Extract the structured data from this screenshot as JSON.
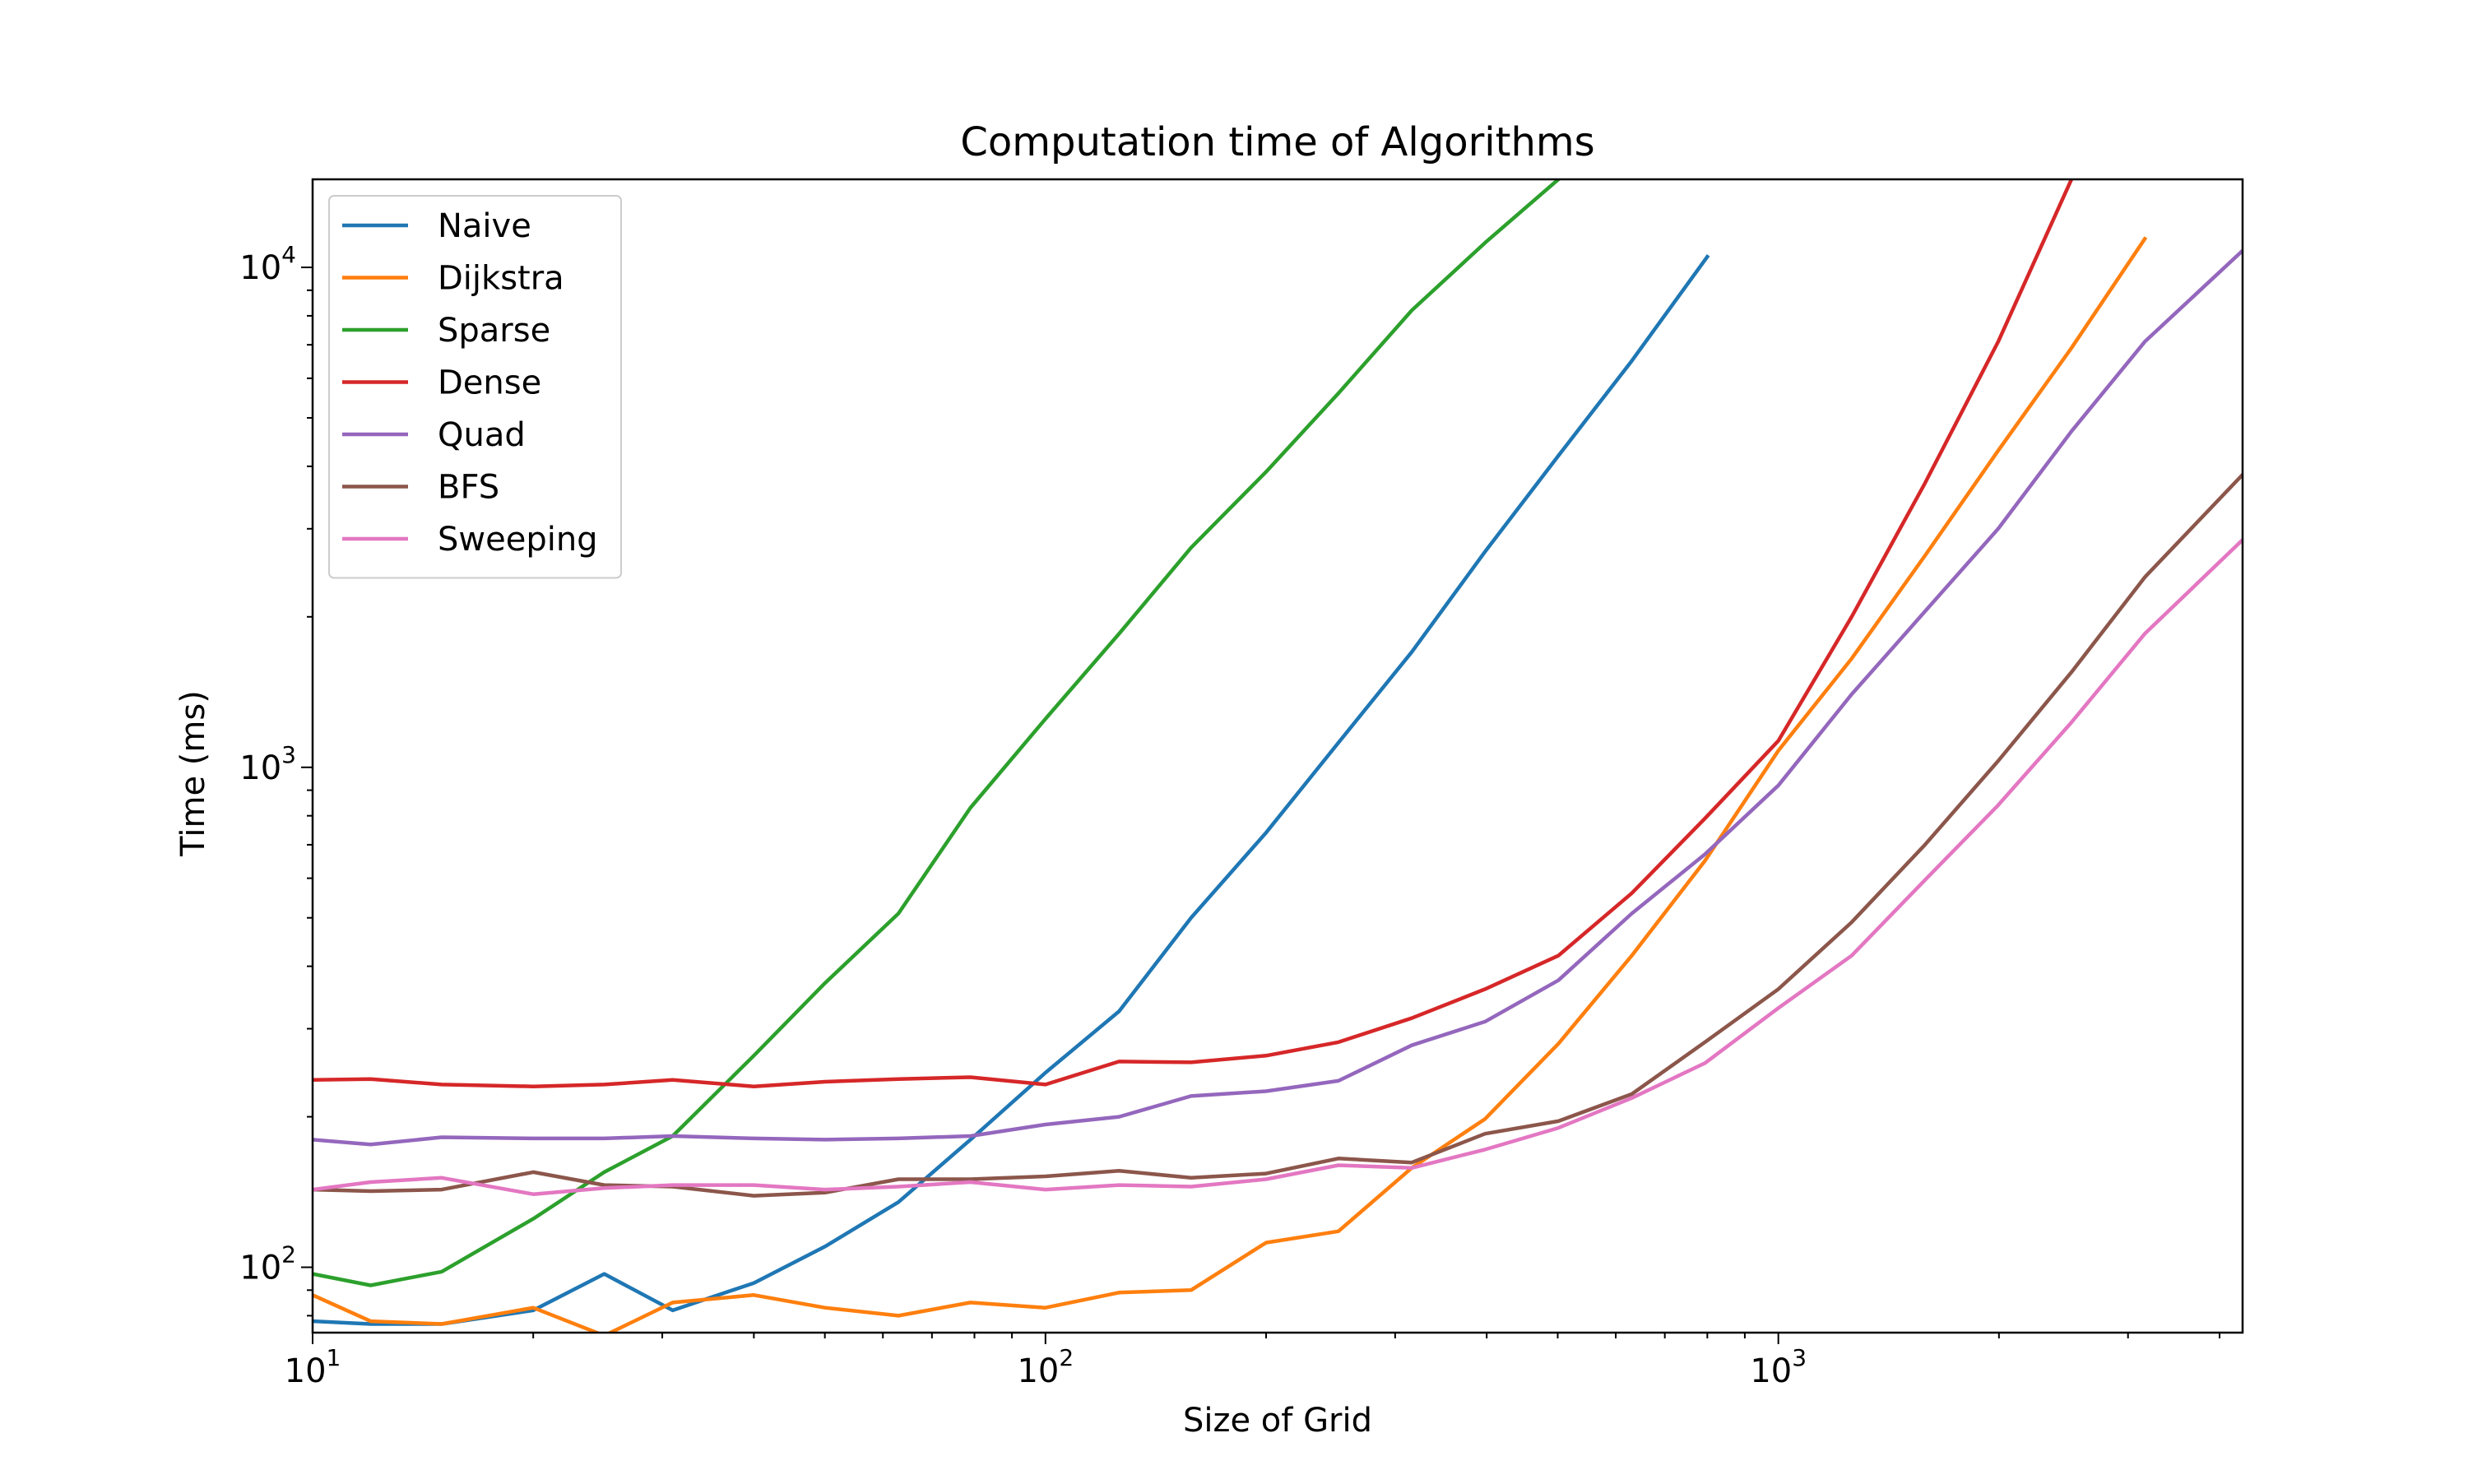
{
  "chart_data": {
    "type": "line",
    "title": "Computation time of Algorithms",
    "xlabel": "Size of Grid",
    "ylabel": "Time (ms)",
    "xscale": "log",
    "yscale": "log",
    "xlim": [
      10,
      4300
    ],
    "ylim": [
      74,
      15000
    ],
    "grid": false,
    "legend_position": "upper-left",
    "x_ticks": [
      {
        "value": 10,
        "base": "10",
        "exp": "1"
      },
      {
        "value": 100,
        "base": "10",
        "exp": "2"
      },
      {
        "value": 1000,
        "base": "10",
        "exp": "3"
      }
    ],
    "y_ticks": [
      {
        "value": 100,
        "base": "10",
        "exp": "2"
      },
      {
        "value": 1000,
        "base": "10",
        "exp": "3"
      },
      {
        "value": 10000,
        "base": "10",
        "exp": "4"
      }
    ],
    "series": [
      {
        "name": "Naive",
        "color": "#1f77b4",
        "x": [
          10,
          12,
          15,
          20,
          25,
          31,
          40,
          50,
          63,
          79,
          100,
          126,
          158,
          200,
          251,
          316,
          398,
          501,
          631,
          800
        ],
        "y": [
          78,
          77,
          77,
          82,
          97,
          82,
          93,
          110,
          135,
          180,
          245,
          325,
          500,
          740,
          1120,
          1700,
          2700,
          4200,
          6500,
          10500
        ]
      },
      {
        "name": "Dijkstra",
        "color": "#ff7f0e",
        "x": [
          10,
          12,
          15,
          20,
          25,
          31,
          40,
          50,
          63,
          79,
          100,
          126,
          158,
          200,
          251,
          316,
          398,
          501,
          631,
          794,
          1000,
          1259,
          1585,
          1995,
          2512,
          3162
        ],
        "y": [
          88,
          78,
          77,
          83,
          73,
          85,
          88,
          83,
          80,
          85,
          83,
          89,
          90,
          112,
          118,
          158,
          198,
          280,
          420,
          650,
          1080,
          1650,
          2650,
          4300,
          6900,
          11400
        ]
      },
      {
        "name": "Sparse",
        "color": "#2ca02c",
        "x": [
          10,
          12,
          15,
          20,
          25,
          31,
          40,
          50,
          63,
          79,
          100,
          126,
          158,
          200,
          251,
          316,
          398,
          501
        ],
        "y": [
          97,
          92,
          98,
          125,
          155,
          183,
          265,
          370,
          510,
          830,
          1250,
          1850,
          2750,
          3900,
          5600,
          8200,
          11200,
          15000
        ]
      },
      {
        "name": "Dense",
        "color": "#d62728",
        "x": [
          10,
          12,
          15,
          20,
          25,
          31,
          40,
          50,
          63,
          79,
          100,
          126,
          158,
          200,
          251,
          316,
          398,
          501,
          631,
          794,
          1000,
          1259,
          1585,
          1995,
          2512
        ],
        "y": [
          237,
          238,
          232,
          230,
          232,
          237,
          230,
          235,
          238,
          240,
          232,
          258,
          257,
          265,
          282,
          315,
          360,
          420,
          560,
          790,
          1130,
          2000,
          3700,
          7100,
          15000
        ]
      },
      {
        "name": "Quad",
        "color": "#9467bd",
        "x": [
          10,
          12,
          15,
          20,
          25,
          31,
          40,
          50,
          63,
          79,
          100,
          126,
          158,
          200,
          251,
          316,
          398,
          501,
          631,
          794,
          1000,
          1259,
          1585,
          1995,
          2512,
          3162,
          4300
        ],
        "y": [
          180,
          176,
          182,
          181,
          181,
          183,
          181,
          180,
          181,
          183,
          193,
          200,
          220,
          225,
          236,
          278,
          310,
          375,
          510,
          670,
          920,
          1400,
          2050,
          3000,
          4700,
          7100,
          10800
        ]
      },
      {
        "name": "BFS",
        "color": "#8c564b",
        "x": [
          10,
          12,
          15,
          20,
          25,
          31,
          40,
          50,
          63,
          79,
          100,
          126,
          158,
          200,
          251,
          316,
          398,
          501,
          631,
          794,
          1000,
          1259,
          1585,
          1995,
          2512,
          3162,
          4300
        ],
        "y": [
          143,
          142,
          143,
          155,
          146,
          145,
          139,
          141,
          150,
          150,
          152,
          156,
          151,
          154,
          165,
          162,
          185,
          196,
          222,
          282,
          360,
          490,
          700,
          1030,
          1550,
          2400,
          3850
        ]
      },
      {
        "name": "Sweeping",
        "color": "#e377c2",
        "x": [
          10,
          12,
          15,
          20,
          25,
          31,
          40,
          50,
          63,
          79,
          100,
          126,
          158,
          200,
          251,
          316,
          398,
          501,
          631,
          794,
          1000,
          1259,
          1585,
          1995,
          2512,
          3162,
          4300
        ],
        "y": [
          143,
          148,
          151,
          140,
          144,
          146,
          146,
          143,
          145,
          148,
          143,
          146,
          145,
          150,
          160,
          158,
          172,
          190,
          218,
          256,
          330,
          420,
          595,
          840,
          1230,
          1850,
          2850
        ]
      }
    ]
  }
}
